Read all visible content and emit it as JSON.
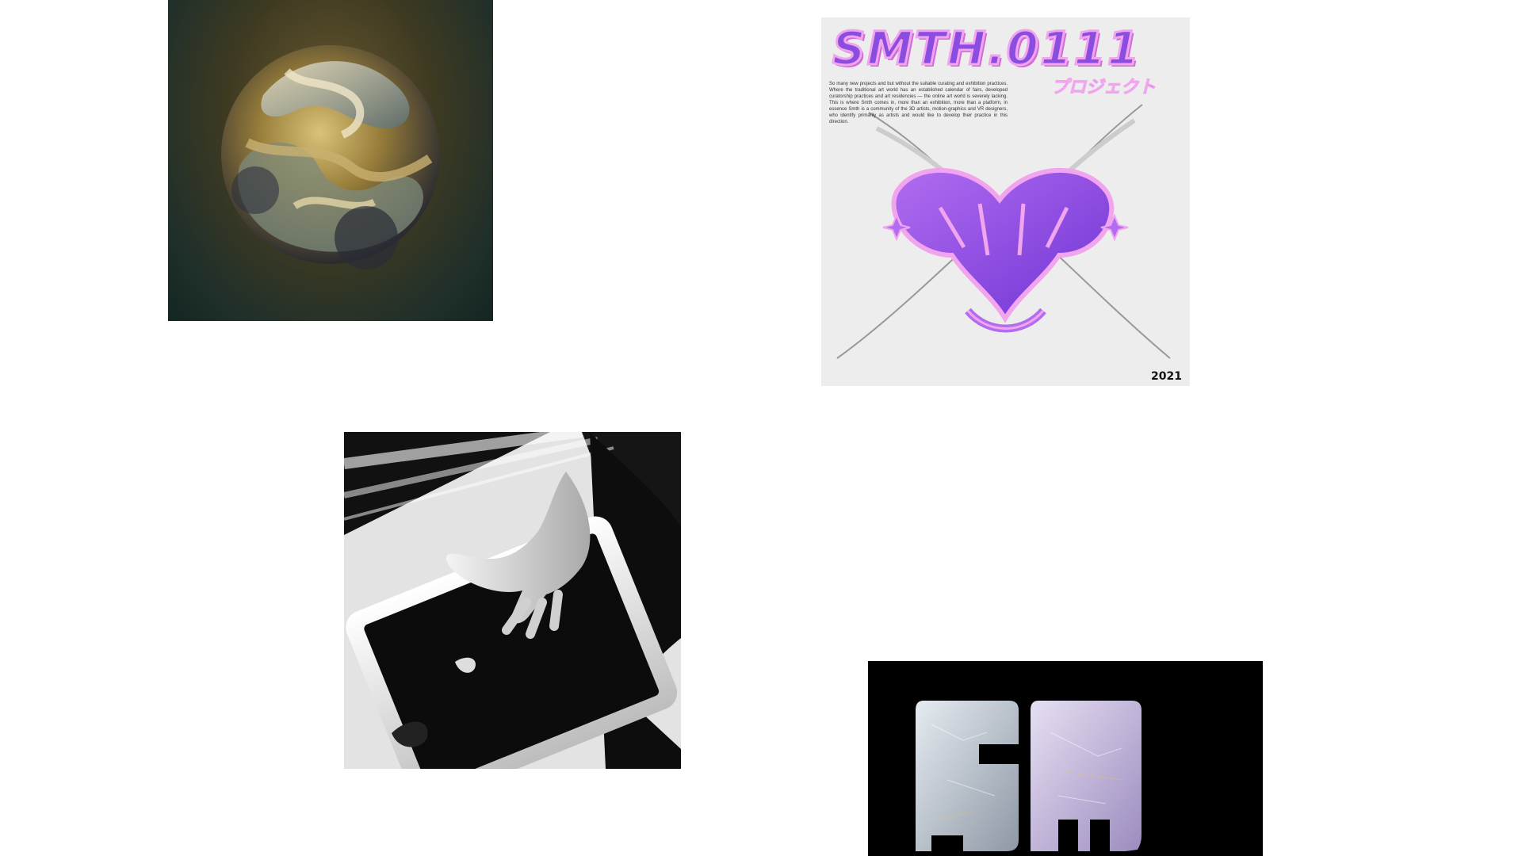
{
  "gallery": {
    "items": [
      {
        "id": "sphere",
        "icon": "organic-sphere-artwork"
      },
      {
        "id": "poster",
        "icon": "smth-poster-artwork"
      },
      {
        "id": "hand",
        "icon": "hand-tablet-artwork"
      },
      {
        "id": "ice",
        "icon": "ice-letters-artwork"
      }
    ]
  },
  "poster": {
    "title": "SMTH.0111",
    "subtitle": "プロジェクト",
    "body": "So many new projects and but without the suitable curating and exhibition practices. Where the traditional art world has an established calendar of fairs, developed curatorship practices and art residencies — the online art world is severely lacking. This is where Smth comes in, more than an exhibition, more than a platform, in essence Smth is a community of the 3D artists, motion-graphics and VR designers, who identify primarily as artists and would like to develop their practice in this direction.",
    "year": "2021",
    "colors": {
      "accent": "#8a4de0",
      "outline": "#f1a5ee",
      "background": "#ededed"
    }
  }
}
